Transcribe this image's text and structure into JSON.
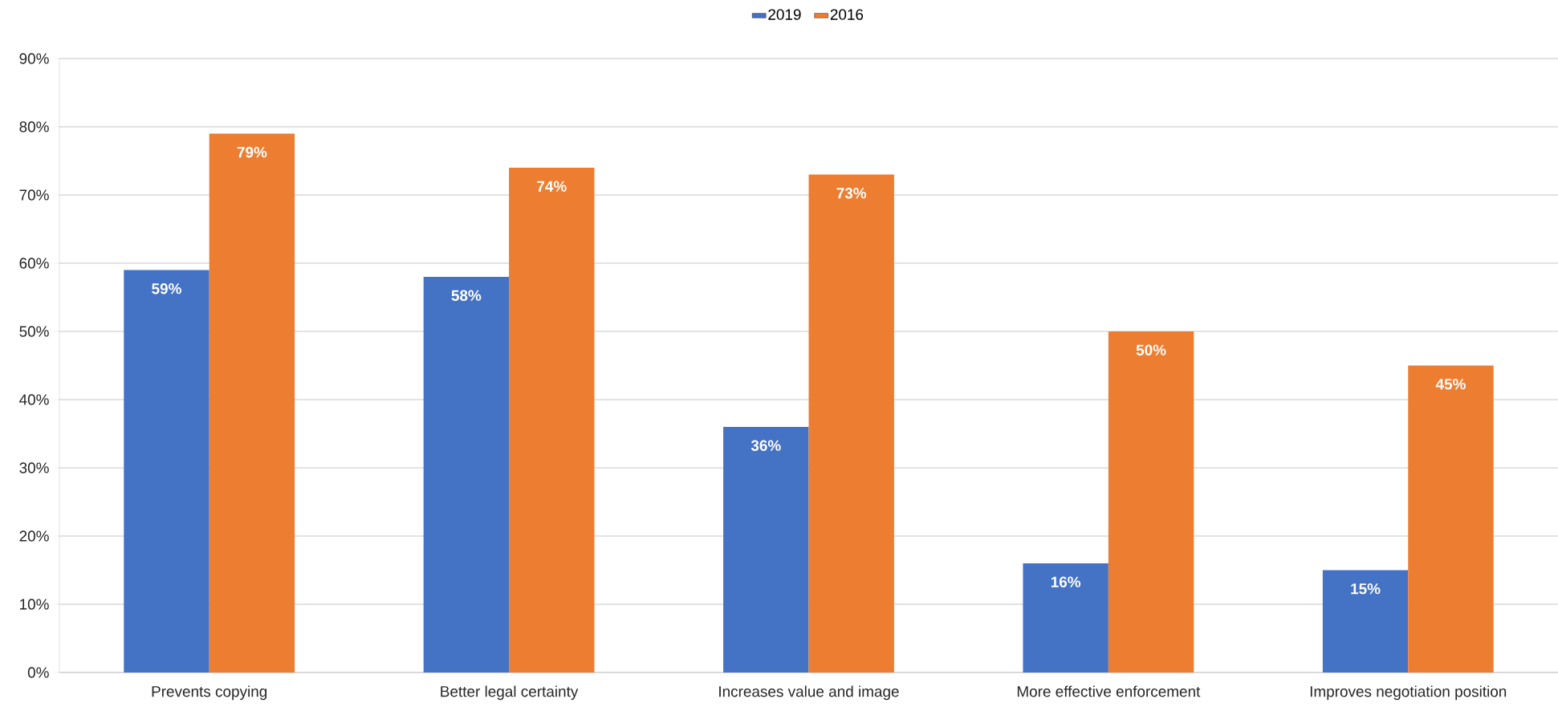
{
  "chart_data": {
    "type": "bar",
    "categories": [
      "Prevents copying",
      "Better legal certainty",
      "Increases value and image",
      "More effective enforcement",
      "Improves negotiation position"
    ],
    "series": [
      {
        "name": "2019",
        "color": "#4472c4",
        "values": [
          59,
          58,
          36,
          16,
          15
        ],
        "value_labels": [
          "59%",
          "58%",
          "36%",
          "16%",
          "15%"
        ]
      },
      {
        "name": "2016",
        "color": "#ed7d31",
        "values": [
          79,
          74,
          73,
          50,
          45
        ],
        "value_labels": [
          "79%",
          "74%",
          "73%",
          "50%",
          "45%"
        ]
      }
    ],
    "ylim": [
      0,
      90
    ],
    "yticks": [
      {
        "value": 0,
        "label": "0%"
      },
      {
        "value": 10,
        "label": "10%"
      },
      {
        "value": 20,
        "label": "20%"
      },
      {
        "value": 30,
        "label": "30%"
      },
      {
        "value": 40,
        "label": "40%"
      },
      {
        "value": 50,
        "label": "50%"
      },
      {
        "value": 60,
        "label": "60%"
      },
      {
        "value": 70,
        "label": "70%"
      },
      {
        "value": 80,
        "label": "80%"
      },
      {
        "value": 90,
        "label": "90%"
      }
    ],
    "grid": "y",
    "legend": "top"
  }
}
